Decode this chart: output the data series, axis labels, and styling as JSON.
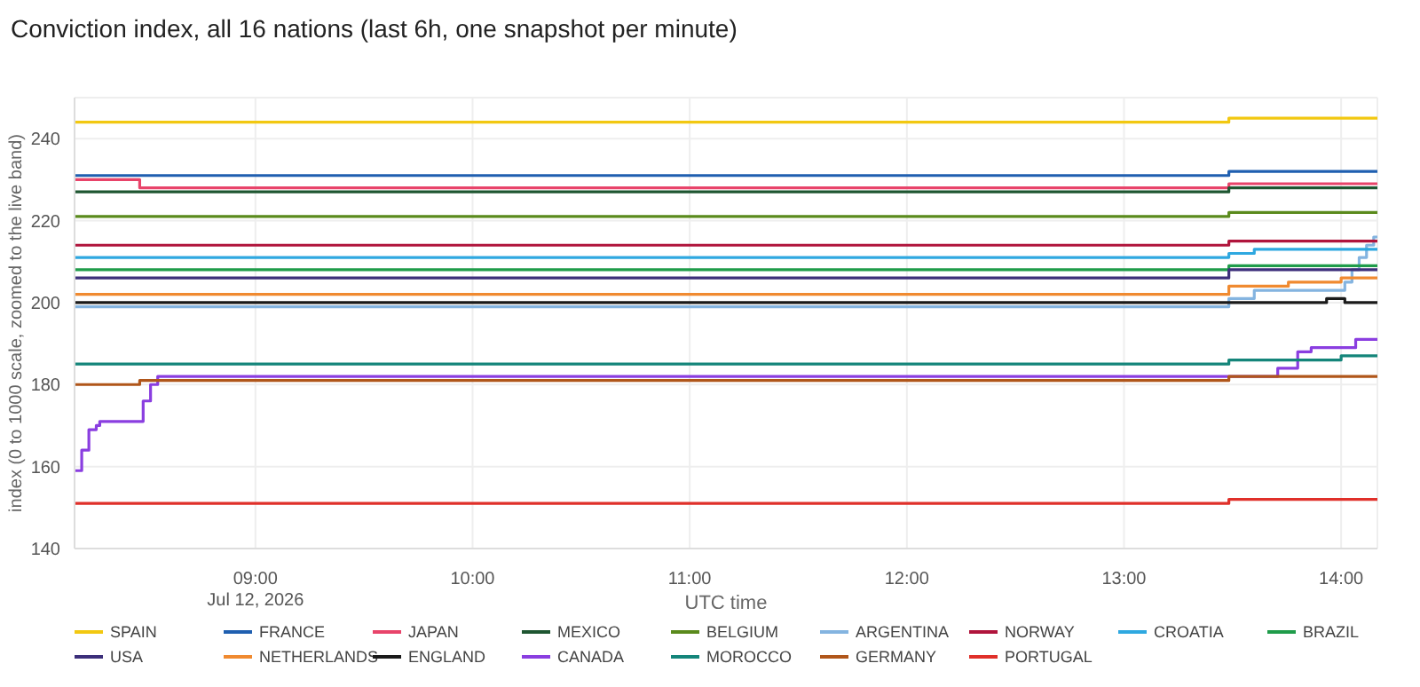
{
  "chart_data": {
    "type": "step",
    "title": "Conviction index, all 16 nations (last 6h, one snapshot per minute)",
    "xlabel": "UTC time",
    "ylabel": "index (0 to 1000 scale, zoomed to the live band)",
    "xlim": [
      8.167,
      14.167
    ],
    "xticks": [
      {
        "value": 9,
        "label": "09:00\nJul 12, 2026"
      },
      {
        "value": 10,
        "label": "10:00"
      },
      {
        "value": 11,
        "label": "11:00"
      },
      {
        "value": 12,
        "label": "12:00"
      },
      {
        "value": 13,
        "label": "13:00"
      },
      {
        "value": 14,
        "label": "14:00"
      }
    ],
    "ylim": [
      140,
      250
    ],
    "yticks": [
      140,
      160,
      180,
      200,
      220,
      240
    ],
    "grid": true,
    "legend": "bottom",
    "marker": "none",
    "line_style": "solid",
    "series": [
      {
        "name": "SPAIN",
        "color": "#f2c811",
        "x": [
          8.167,
          13.483,
          14.167
        ],
        "values": [
          244,
          245,
          245
        ]
      },
      {
        "name": "FRANCE",
        "color": "#1f5fb0",
        "x": [
          8.167,
          13.483,
          14.167
        ],
        "values": [
          231,
          232,
          232
        ]
      },
      {
        "name": "JAPAN",
        "color": "#e8446a",
        "x": [
          8.167,
          8.467,
          13.483,
          14.167
        ],
        "values": [
          230,
          228,
          229,
          229
        ]
      },
      {
        "name": "MEXICO",
        "color": "#1e5631",
        "x": [
          8.167,
          13.483,
          14.167
        ],
        "values": [
          227,
          228,
          228
        ]
      },
      {
        "name": "BELGIUM",
        "color": "#5a8a1c",
        "x": [
          8.167,
          13.483,
          14.167
        ],
        "values": [
          221,
          222,
          222
        ]
      },
      {
        "name": "ARGENTINA",
        "color": "#84b4e0",
        "x": [
          8.167,
          13.483,
          13.6,
          14.017,
          14.05,
          14.083,
          14.117,
          14.15,
          14.167
        ],
        "values": [
          199,
          201,
          203,
          205,
          208,
          211,
          214,
          216,
          216
        ]
      },
      {
        "name": "NORWAY",
        "color": "#b0143c",
        "x": [
          8.167,
          13.483,
          14.167
        ],
        "values": [
          214,
          215,
          215
        ]
      },
      {
        "name": "CROATIA",
        "color": "#2ea8e0",
        "x": [
          8.167,
          13.483,
          13.6,
          14.167
        ],
        "values": [
          211,
          212,
          213,
          213
        ]
      },
      {
        "name": "BRAZIL",
        "color": "#1f9c4a",
        "x": [
          8.167,
          13.483,
          14.167
        ],
        "values": [
          208,
          209,
          209
        ]
      },
      {
        "name": "USA",
        "color": "#3c2f7a",
        "x": [
          8.167,
          13.483,
          14.167
        ],
        "values": [
          206,
          208,
          208
        ]
      },
      {
        "name": "NETHERLANDS",
        "color": "#f08a30",
        "x": [
          8.167,
          13.483,
          13.757,
          14.0,
          14.167
        ],
        "values": [
          202,
          204,
          205,
          206,
          206
        ]
      },
      {
        "name": "ENGLAND",
        "color": "#1a1a1a",
        "x": [
          8.167,
          13.933,
          14.017,
          14.167
        ],
        "values": [
          200,
          201,
          200,
          200
        ]
      },
      {
        "name": "CANADA",
        "color": "#8a3ee0",
        "x": [
          8.167,
          8.2,
          8.233,
          8.267,
          8.283,
          8.45,
          8.483,
          8.517,
          8.55,
          13.483,
          13.708,
          13.8,
          13.862,
          14.067,
          14.167
        ],
        "values": [
          159,
          164,
          169,
          170,
          171,
          171,
          176,
          180,
          182,
          182,
          184,
          188,
          189,
          191,
          191
        ]
      },
      {
        "name": "MOROCCO",
        "color": "#14857a",
        "x": [
          8.167,
          13.483,
          14.0,
          14.167
        ],
        "values": [
          185,
          186,
          187,
          187
        ]
      },
      {
        "name": "GERMANY",
        "color": "#b0561a",
        "x": [
          8.167,
          8.467,
          13.483,
          14.167
        ],
        "values": [
          180,
          181,
          182,
          182
        ]
      },
      {
        "name": "PORTUGAL",
        "color": "#e0302a",
        "x": [
          8.167,
          13.483,
          14.167
        ],
        "values": [
          151,
          152,
          152
        ]
      }
    ]
  }
}
